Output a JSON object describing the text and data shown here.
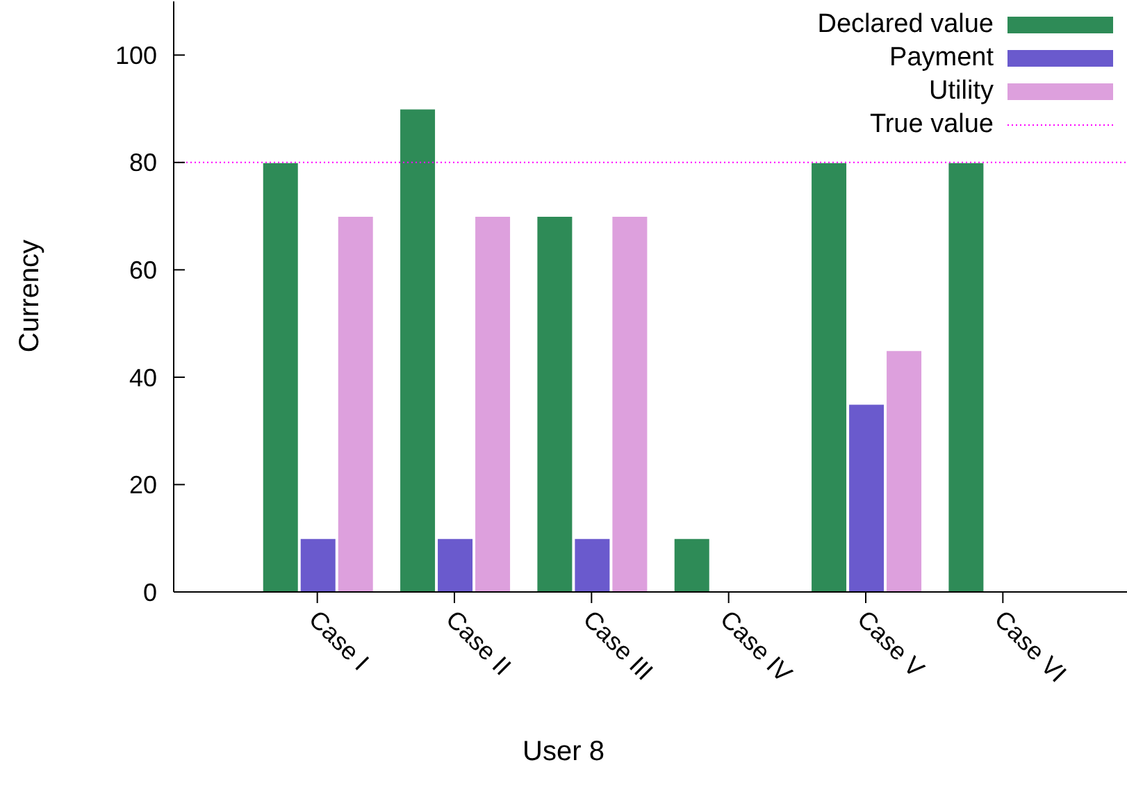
{
  "chart_data": {
    "type": "bar",
    "xlabel": "User 8",
    "ylabel": "Currency",
    "categories": [
      "Case I",
      "Case II",
      "Case III",
      "Case IV",
      "Case V",
      "Case VI"
    ],
    "series": [
      {
        "name": "Declared value",
        "color": "#2e8b57",
        "values": [
          80,
          90,
          70,
          10,
          80,
          80
        ]
      },
      {
        "name": "Payment",
        "color": "#6a5acd",
        "values": [
          10,
          10,
          10,
          0,
          35,
          0
        ]
      },
      {
        "name": "Utility",
        "color": "#dda0dd",
        "values": [
          70,
          70,
          70,
          0,
          45,
          0
        ]
      }
    ],
    "ylim": [
      0,
      110
    ],
    "yticks": [
      0,
      20,
      40,
      60,
      80,
      100
    ],
    "ref_lines": [
      {
        "axis": "y",
        "value": 80,
        "label": "True value",
        "color": "#ff00ff",
        "line_style": "dotted"
      }
    ],
    "grid": false,
    "legend": "top right"
  }
}
